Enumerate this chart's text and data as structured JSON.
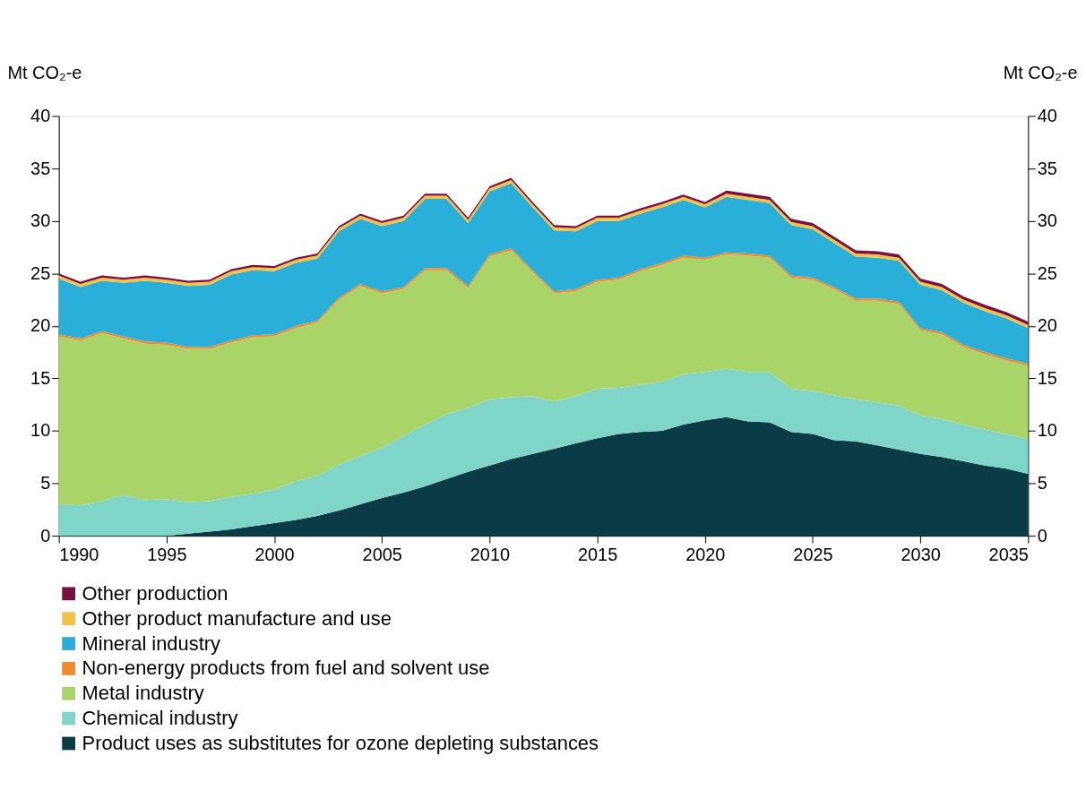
{
  "chart_data": {
    "type": "area",
    "stacked": true,
    "x": [
      1990,
      1991,
      1992,
      1993,
      1994,
      1995,
      1996,
      1997,
      1998,
      1999,
      2000,
      2001,
      2002,
      2003,
      2004,
      2005,
      2006,
      2007,
      2008,
      2009,
      2010,
      2011,
      2012,
      2013,
      2014,
      2015,
      2016,
      2017,
      2018,
      2019,
      2020,
      2021,
      2022,
      2023,
      2024,
      2025,
      2026,
      2027,
      2028,
      2029,
      2030,
      2031,
      2032,
      2033,
      2034,
      2035
    ],
    "xlim": [
      1990,
      2035
    ],
    "xticks": [
      1990,
      1995,
      2000,
      2005,
      2010,
      2015,
      2020,
      2025,
      2030,
      2035
    ],
    "ylim": [
      0,
      40
    ],
    "yticks": [
      0,
      5,
      10,
      15,
      20,
      25,
      30,
      35,
      40
    ],
    "y2lim": [
      0,
      40
    ],
    "y2ticks": [
      0,
      5,
      10,
      15,
      20,
      25,
      30,
      35,
      40
    ],
    "ylabel": "Mt CO₂-e",
    "y2label": "Mt CO₂-e",
    "grid": false,
    "legend": "bottom",
    "series": [
      {
        "name": "Product uses as substitutes for ozone depleting substances",
        "color": "#0b3b45",
        "values": [
          0,
          0,
          0,
          0,
          0,
          0,
          0.2,
          0.4,
          0.6,
          0.9,
          1.2,
          1.5,
          1.9,
          2.4,
          3.0,
          3.6,
          4.1,
          4.7,
          5.4,
          6.1,
          6.7,
          7.3,
          7.8,
          8.3,
          8.8,
          9.3,
          9.7,
          9.9,
          10.0,
          10.6,
          11.0,
          11.3,
          10.9,
          10.8,
          9.9,
          9.7,
          9.1,
          9.0,
          8.6,
          8.2,
          7.8,
          7.5,
          7.1,
          6.7,
          6.4,
          5.9
        ]
      },
      {
        "name": "Chemical industry",
        "color": "#7fd6c8",
        "values": [
          3.0,
          2.9,
          3.3,
          3.9,
          3.4,
          3.5,
          3.0,
          2.9,
          3.1,
          3.1,
          3.2,
          3.7,
          3.8,
          4.4,
          4.6,
          4.8,
          5.4,
          5.9,
          6.2,
          6.1,
          6.3,
          5.9,
          5.5,
          4.5,
          4.5,
          4.7,
          4.4,
          4.5,
          4.7,
          4.8,
          4.6,
          4.6,
          4.7,
          4.8,
          4.1,
          4.1,
          4.3,
          4.0,
          4.1,
          4.2,
          3.7,
          3.6,
          3.5,
          3.4,
          3.3,
          3.3
        ]
      },
      {
        "name": "Metal industry",
        "color": "#a9d468",
        "values": [
          16.0,
          15.7,
          16.0,
          14.9,
          14.9,
          14.7,
          14.6,
          14.5,
          14.7,
          14.9,
          14.6,
          14.6,
          14.6,
          15.7,
          16.2,
          14.7,
          14.0,
          14.7,
          13.7,
          11.4,
          13.6,
          14.0,
          11.8,
          10.3,
          10.0,
          10.2,
          10.3,
          10.8,
          11.1,
          11.1,
          10.7,
          10.9,
          11.1,
          10.9,
          10.6,
          10.6,
          10.1,
          9.4,
          9.7,
          9.7,
          8.1,
          8.1,
          7.4,
          7.2,
          7.0,
          7.0
        ]
      },
      {
        "name": "Non-energy products from fuel and solvent use",
        "color": "#f08a2c",
        "values": [
          0.2,
          0.2,
          0.2,
          0.2,
          0.2,
          0.2,
          0.2,
          0.2,
          0.2,
          0.2,
          0.2,
          0.2,
          0.2,
          0.2,
          0.2,
          0.2,
          0.2,
          0.2,
          0.2,
          0.2,
          0.2,
          0.2,
          0.2,
          0.2,
          0.2,
          0.2,
          0.2,
          0.2,
          0.2,
          0.2,
          0.2,
          0.2,
          0.2,
          0.2,
          0.2,
          0.2,
          0.2,
          0.2,
          0.2,
          0.2,
          0.2,
          0.2,
          0.2,
          0.2,
          0.2,
          0.2
        ]
      },
      {
        "name": "Mineral industry",
        "color": "#2ab0d8",
        "values": [
          5.3,
          4.9,
          4.8,
          5.1,
          5.8,
          5.7,
          5.8,
          5.9,
          6.3,
          6.2,
          6.0,
          6.0,
          5.9,
          6.3,
          6.2,
          6.2,
          6.3,
          6.6,
          6.6,
          6.0,
          6.0,
          6.2,
          6.0,
          5.8,
          5.5,
          5.6,
          5.4,
          5.3,
          5.3,
          5.3,
          4.8,
          5.3,
          5.1,
          5.0,
          4.8,
          4.6,
          4.2,
          4.0,
          3.9,
          3.9,
          4.1,
          4.0,
          4.0,
          3.9,
          3.8,
          3.4
        ]
      },
      {
        "name": "Other product manufacture and use",
        "color": "#f5c343",
        "values": [
          0.3,
          0.3,
          0.3,
          0.3,
          0.3,
          0.3,
          0.3,
          0.3,
          0.3,
          0.3,
          0.3,
          0.3,
          0.3,
          0.3,
          0.3,
          0.3,
          0.3,
          0.3,
          0.3,
          0.3,
          0.3,
          0.3,
          0.3,
          0.3,
          0.3,
          0.3,
          0.3,
          0.3,
          0.3,
          0.3,
          0.3,
          0.3,
          0.3,
          0.3,
          0.3,
          0.3,
          0.3,
          0.3,
          0.3,
          0.3,
          0.3,
          0.3,
          0.3,
          0.3,
          0.3,
          0.3
        ]
      },
      {
        "name": "Other production",
        "color": "#7a1040",
        "values": [
          0.2,
          0.2,
          0.2,
          0.2,
          0.2,
          0.2,
          0.2,
          0.2,
          0.2,
          0.2,
          0.2,
          0.2,
          0.2,
          0.2,
          0.2,
          0.2,
          0.2,
          0.2,
          0.2,
          0.2,
          0.2,
          0.2,
          0.2,
          0.2,
          0.2,
          0.2,
          0.2,
          0.2,
          0.2,
          0.2,
          0.2,
          0.3,
          0.3,
          0.3,
          0.3,
          0.3,
          0.3,
          0.3,
          0.3,
          0.3,
          0.3,
          0.3,
          0.3,
          0.3,
          0.3,
          0.3
        ]
      }
    ]
  }
}
